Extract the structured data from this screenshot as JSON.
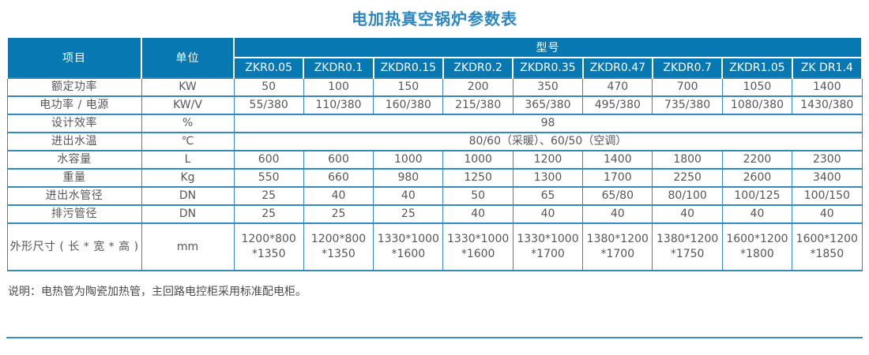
{
  "title": "电加热真空锅炉参数表",
  "note": "说明：电热管为陶瓷加热管，主回路电控柜采用标准配电柜。",
  "colors": {
    "header_bg": "#0878B2",
    "border_blue": "#3389BD",
    "title_blue": "#2B87C1",
    "rule_blue": "#3D8FC2"
  },
  "table": {
    "header": {
      "item": "项目",
      "unit": "单位",
      "model_group": "型号",
      "models": [
        "ZKR0.05",
        "ZKDR0.1",
        "ZKDR0.15",
        "ZKDR0.2",
        "ZKDR0.35",
        "ZKDR0.47",
        "ZKDR0.7",
        "ZKDR1.05",
        "ZK DR1.4"
      ]
    },
    "rows": [
      {
        "label": "额定功率",
        "unit": "KW",
        "values": [
          "50",
          "100",
          "150",
          "200",
          "350",
          "470",
          "700",
          "1050",
          "1400"
        ]
      },
      {
        "label": "电功率 / 电源",
        "unit": "KW/V",
        "values": [
          "55/380",
          "110/380",
          "160/380",
          "215/380",
          "365/380",
          "495/380",
          "735/380",
          "1080/380",
          "1430/380"
        ]
      },
      {
        "label": "设计效率",
        "unit": "%",
        "span_value": "98"
      },
      {
        "label": "进出水温",
        "unit": "℃",
        "span_value": "80/60（采暖）、60/50（空调）"
      },
      {
        "label": "水容量",
        "unit": "L",
        "values": [
          "600",
          "600",
          "1000",
          "1000",
          "1200",
          "1400",
          "1800",
          "2200",
          "2300"
        ]
      },
      {
        "label": "重量",
        "unit": "Kg",
        "values": [
          "550",
          "660",
          "980",
          "1250",
          "1300",
          "1700",
          "2250",
          "2600",
          "3400"
        ]
      },
      {
        "label": "进出水管径",
        "unit": "DN",
        "values": [
          "25",
          "40",
          "40",
          "50",
          "65",
          "65/80",
          "80/100",
          "100/125",
          "100/150"
        ]
      },
      {
        "label": "排污管径",
        "unit": "DN",
        "values": [
          "25",
          "25",
          "25",
          "40",
          "40",
          "40",
          "40",
          "40",
          "40"
        ]
      },
      {
        "label": "外形尺寸 ( 长 * 宽 * 高 )",
        "unit": "mm",
        "tall": true,
        "values": [
          "1200*800\n*1350",
          "1200*800\n*1350",
          "1330*1000\n*1600",
          "1330*1000\n*1600",
          "1330*1000\n*1700",
          "1380*1200\n*1700",
          "1380*1200\n*1750",
          "1600*1200\n*1800",
          "1600*1200\n*1850"
        ]
      }
    ]
  }
}
